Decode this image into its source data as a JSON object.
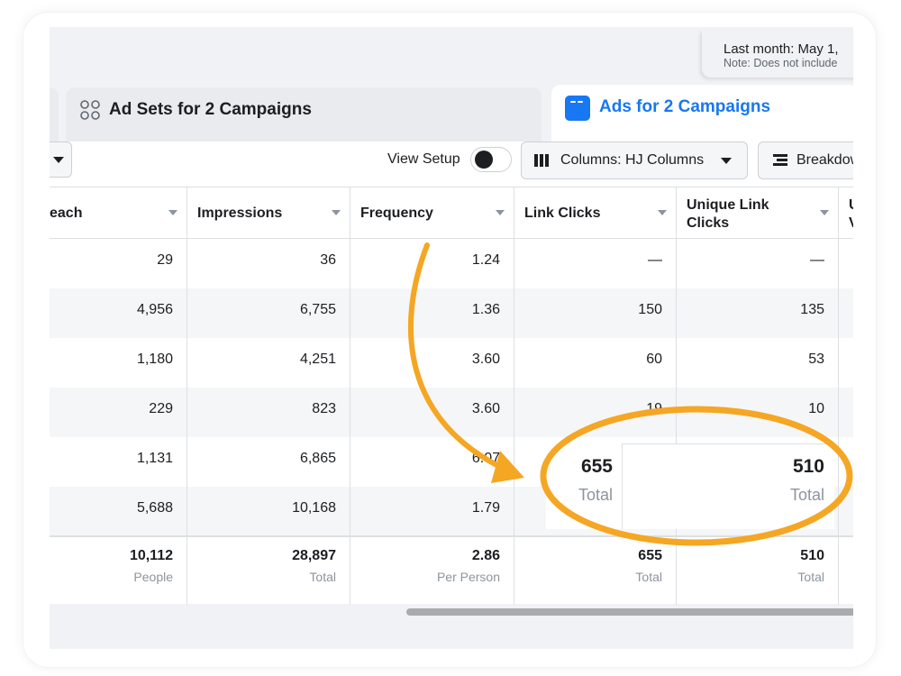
{
  "date_range": {
    "label": "Last month: May 1,",
    "note": "Note: Does not include"
  },
  "tabs": [
    {
      "label": "Ad Sets for 2 Campaigns",
      "icon": "ad-sets-icon"
    },
    {
      "label": "Ads for 2 Campaigns",
      "icon": "ads-icon",
      "active": true
    }
  ],
  "toolbar": {
    "view_setup_label": "View Setup",
    "columns_label": "Columns: HJ Columns",
    "breakdown_label": "Breakdow"
  },
  "table": {
    "headers": [
      "each",
      "Impressions",
      "Frequency",
      "Link Clicks",
      "Unique Link Clicks",
      "U V"
    ],
    "rows": [
      [
        "29",
        "36",
        "1.24",
        "—",
        "—"
      ],
      [
        "4,956",
        "6,755",
        "1.36",
        "150",
        "135"
      ],
      [
        "1,180",
        "4,251",
        "3.60",
        "60",
        "53"
      ],
      [
        "229",
        "823",
        "3.60",
        "19",
        "10"
      ],
      [
        "1,131",
        "6,865",
        "6.07",
        "",
        ""
      ],
      [
        "5,688",
        "10,168",
        "1.79",
        "",
        ""
      ]
    ],
    "totals": [
      {
        "value": "10,112",
        "label": "People"
      },
      {
        "value": "28,897",
        "label": "Total"
      },
      {
        "value": "2.86",
        "label": "Per Person"
      },
      {
        "value": "655",
        "label": "Total"
      },
      {
        "value": "510",
        "label": "Total"
      }
    ]
  },
  "highlight": {
    "link_clicks": {
      "value": "655",
      "label": "Total"
    },
    "unique_link_clicks": {
      "value": "510",
      "label": "Total"
    },
    "accent_color": "#f5a623"
  }
}
